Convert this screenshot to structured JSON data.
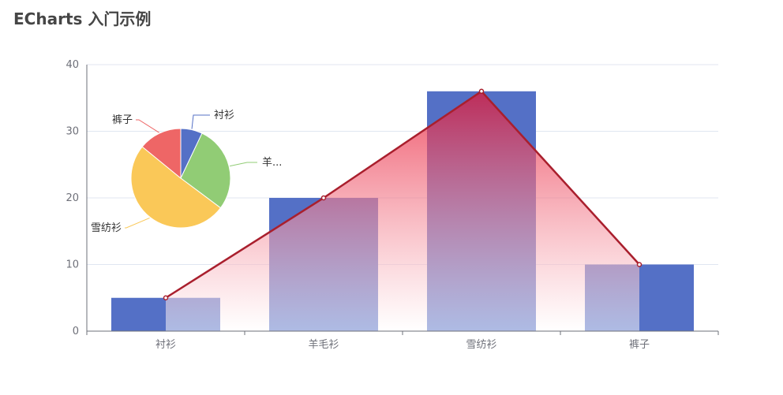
{
  "title": "ECharts 入门示例",
  "colors": {
    "bar": "#5470C6",
    "line": "#A91F2D",
    "pie": [
      "#5470C6",
      "#91CC75",
      "#FAC858",
      "#EE6666"
    ],
    "grid": "#E0E6F1",
    "axis": "#6E7079"
  },
  "chart_data": [
    {
      "type": "bar",
      "categories": [
        "衬衫",
        "羊毛衫",
        "雪纺衫",
        "裤子"
      ],
      "series": [
        {
          "type": "bar",
          "values": [
            5,
            20,
            36,
            10
          ]
        },
        {
          "type": "line",
          "values": [
            5,
            20,
            36,
            10
          ],
          "area": true
        }
      ],
      "ylim": [
        0,
        40
      ],
      "yticks": [
        0,
        10,
        20,
        30,
        40
      ],
      "grid": true
    },
    {
      "type": "pie",
      "labels": [
        "衬衫",
        "羊毛衫",
        "雪纺衫",
        "裤子"
      ],
      "display_labels": [
        "衬衫",
        "羊...",
        "雪纺衫",
        "裤子"
      ],
      "values": [
        5,
        20,
        36,
        10
      ]
    }
  ]
}
